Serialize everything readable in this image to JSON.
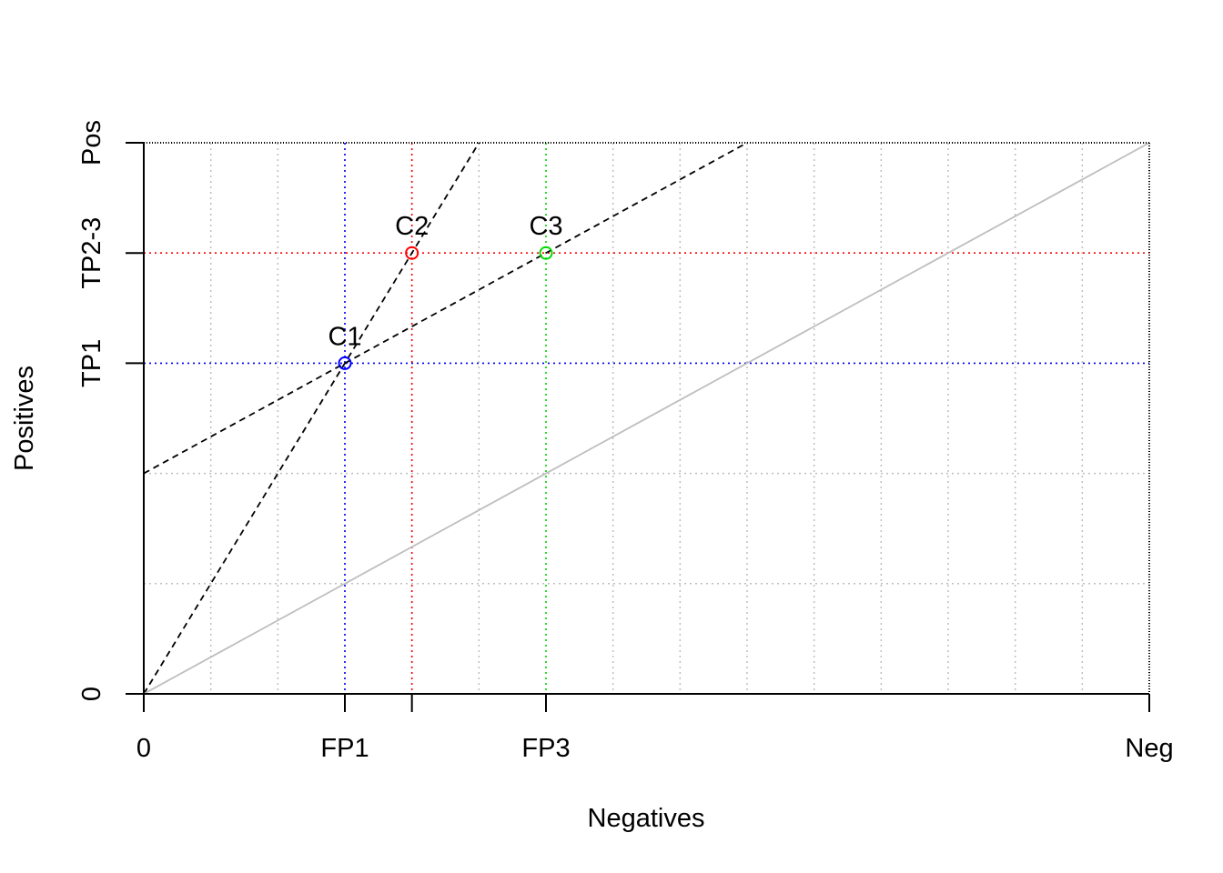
{
  "chart_data": {
    "type": "scatter",
    "title": "",
    "xlabel": "Negatives",
    "ylabel": "Positives",
    "xlim": [
      0,
      15
    ],
    "ylim": [
      0,
      5
    ],
    "grid": true,
    "x_ticks": [
      {
        "value": 0,
        "label": "0"
      },
      {
        "value": 3,
        "label": "FP1"
      },
      {
        "value": 4,
        "label": ""
      },
      {
        "value": 6,
        "label": "FP3"
      },
      {
        "value": 15,
        "label": "Neg"
      }
    ],
    "y_ticks": [
      {
        "value": 0,
        "label": "0"
      },
      {
        "value": 3,
        "label": "TP1"
      },
      {
        "value": 4,
        "label": "TP2-3"
      },
      {
        "value": 5,
        "label": "Pos"
      }
    ],
    "x_grid": [
      1,
      2,
      3,
      4,
      5,
      6,
      7,
      8,
      9,
      10,
      11,
      12,
      13,
      14,
      15
    ],
    "y_grid": [
      1,
      2,
      3,
      4,
      5
    ],
    "points": [
      {
        "label": "C1",
        "x": 3,
        "y": 3,
        "color": "#0000ff"
      },
      {
        "label": "C2",
        "x": 4,
        "y": 4,
        "color": "#ff0000"
      },
      {
        "label": "C3",
        "x": 6,
        "y": 4,
        "color": "#00dd00"
      }
    ],
    "lines": [
      {
        "style": "dashed",
        "color": "#000000",
        "from": [
          0,
          0
        ],
        "to": [
          5,
          5
        ]
      },
      {
        "style": "dashed",
        "color": "#000000",
        "from": [
          0,
          2
        ],
        "to": [
          9,
          5
        ]
      },
      {
        "style": "solid",
        "color": "#bebebe",
        "from": [
          0,
          0
        ],
        "to": [
          15,
          5
        ]
      }
    ]
  }
}
